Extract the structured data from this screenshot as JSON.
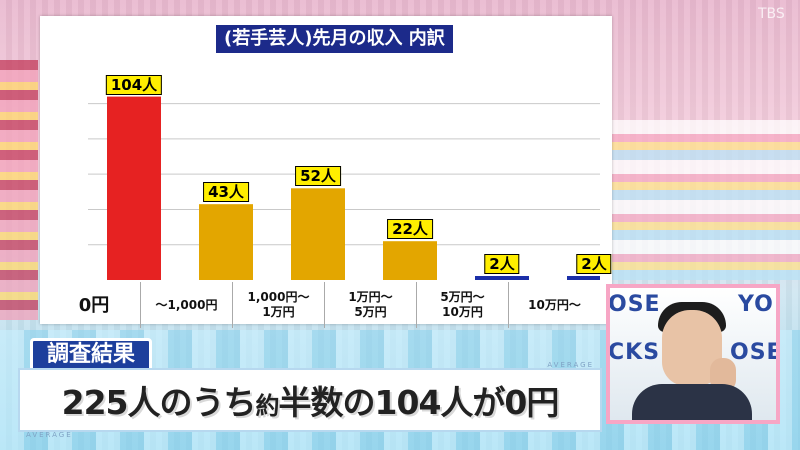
{
  "chart_data": {
    "type": "bar",
    "title": "(若手芸人)先月の収入 内訳",
    "categories": [
      "0円",
      "〜1,000円",
      "1,000円〜\n1万円",
      "1万円〜\n5万円",
      "5万円〜\n10万円",
      "10万円〜"
    ],
    "values": [
      104,
      43,
      52,
      22,
      2,
      2
    ],
    "value_labels": [
      "104人",
      "43人",
      "52人",
      "22人",
      "2人",
      "2人"
    ],
    "bar_colors": [
      "#e62222",
      "#e3a600",
      "#e3a600",
      "#e3a600",
      "#1b2fa8",
      "#1b2fa8"
    ],
    "ylim": [
      0,
      110
    ],
    "grid": true,
    "legend": "none"
  },
  "caption": {
    "tag": "調査結果",
    "main_part1": "225人のうち",
    "main_small": "約",
    "main_part2": "半数の104人が0円",
    "avg_label": "AVERAGE"
  },
  "host_pip": {
    "background_text": [
      "OSE",
      "YO",
      "CKS",
      "OSE"
    ]
  },
  "broadcast": {
    "logo_text": "TBS"
  }
}
